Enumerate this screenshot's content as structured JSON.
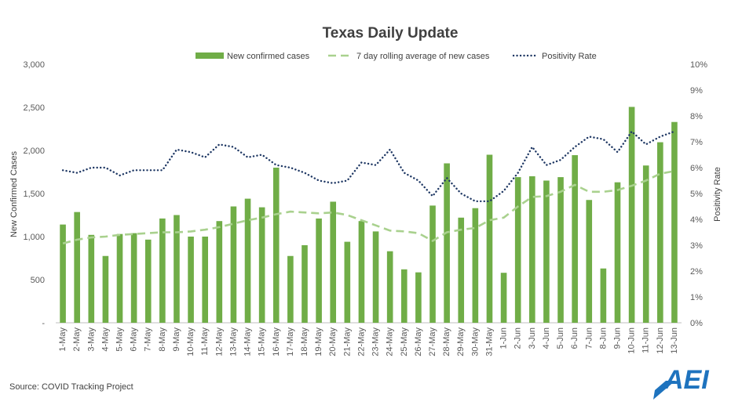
{
  "chart_data": {
    "type": "bar+line",
    "title": "Texas Daily Update",
    "ylabel": "New Confirmed Cases",
    "y2label": "Positivity Rate",
    "ylim": [
      0,
      3000
    ],
    "y2lim": [
      0,
      10
    ],
    "y_ticks": [
      "-",
      "500",
      "1,000",
      "1,500",
      "2,000",
      "2,500",
      "3,000"
    ],
    "y2_ticks": [
      "0%",
      "1%",
      "2%",
      "3%",
      "4%",
      "5%",
      "6%",
      "7%",
      "8%",
      "9%",
      "10%"
    ],
    "categories": [
      "1-May",
      "2-May",
      "3-May",
      "4-May",
      "5-May",
      "6-May",
      "7-May",
      "8-May",
      "9-May",
      "10-May",
      "11-May",
      "12-May",
      "13-May",
      "14-May",
      "15-May",
      "16-May",
      "17-May",
      "18-May",
      "19-May",
      "20-May",
      "21-May",
      "22-May",
      "23-May",
      "24-May",
      "25-May",
      "26-May",
      "27-May",
      "28-May",
      "29-May",
      "30-May",
      "31-May",
      "1-Jun",
      "2-Jun",
      "3-Jun",
      "4-Jun",
      "5-Jun",
      "6-Jun",
      "7-Jun",
      "8-Jun",
      "9-Jun",
      "10-Jun",
      "11-Jun",
      "12-Jun",
      "13-Jun"
    ],
    "series": [
      {
        "name": "New confirmed cases",
        "kind": "bar",
        "color": "#70ad47",
        "values": [
          1140,
          1285,
          1020,
          775,
          1030,
          1040,
          965,
          1210,
          1250,
          1000,
          1000,
          1180,
          1350,
          1440,
          1340,
          1800,
          775,
          900,
          1210,
          1405,
          940,
          1180,
          1060,
          830,
          620,
          585,
          1360,
          1850,
          1220,
          1330,
          1950,
          580,
          1690,
          1700,
          1650,
          1690,
          1945,
          1425,
          630,
          1630,
          2505,
          1825,
          2095,
          2330
        ]
      },
      {
        "name": "7 day rolling average of new cases",
        "kind": "dashed-line",
        "color": "#a9d18e",
        "values": [
          920,
          965,
          990,
          1000,
          1020,
          1030,
          1040,
          1050,
          1050,
          1060,
          1080,
          1110,
          1150,
          1190,
          1220,
          1260,
          1290,
          1280,
          1270,
          1280,
          1250,
          1190,
          1130,
          1070,
          1060,
          1040,
          950,
          1050,
          1080,
          1100,
          1190,
          1220,
          1350,
          1460,
          1470,
          1520,
          1600,
          1520,
          1520,
          1540,
          1590,
          1650,
          1730,
          1760
        ]
      },
      {
        "name": "Positivity Rate",
        "kind": "dotted-line",
        "color": "#1f3864",
        "axis": "y2",
        "values": [
          5.9,
          5.8,
          6.0,
          6.0,
          5.7,
          5.9,
          5.9,
          5.9,
          6.7,
          6.6,
          6.4,
          6.9,
          6.8,
          6.4,
          6.5,
          6.1,
          6.0,
          5.8,
          5.5,
          5.4,
          5.5,
          6.2,
          6.1,
          6.7,
          5.8,
          5.5,
          4.9,
          5.6,
          5.0,
          4.7,
          4.7,
          5.1,
          5.8,
          6.8,
          6.1,
          6.3,
          6.8,
          7.2,
          7.1,
          6.6,
          7.4,
          6.9,
          7.2,
          7.4
        ]
      }
    ],
    "legend": "top"
  },
  "source": "Source: COVID Tracking Project",
  "logo": "AEI"
}
